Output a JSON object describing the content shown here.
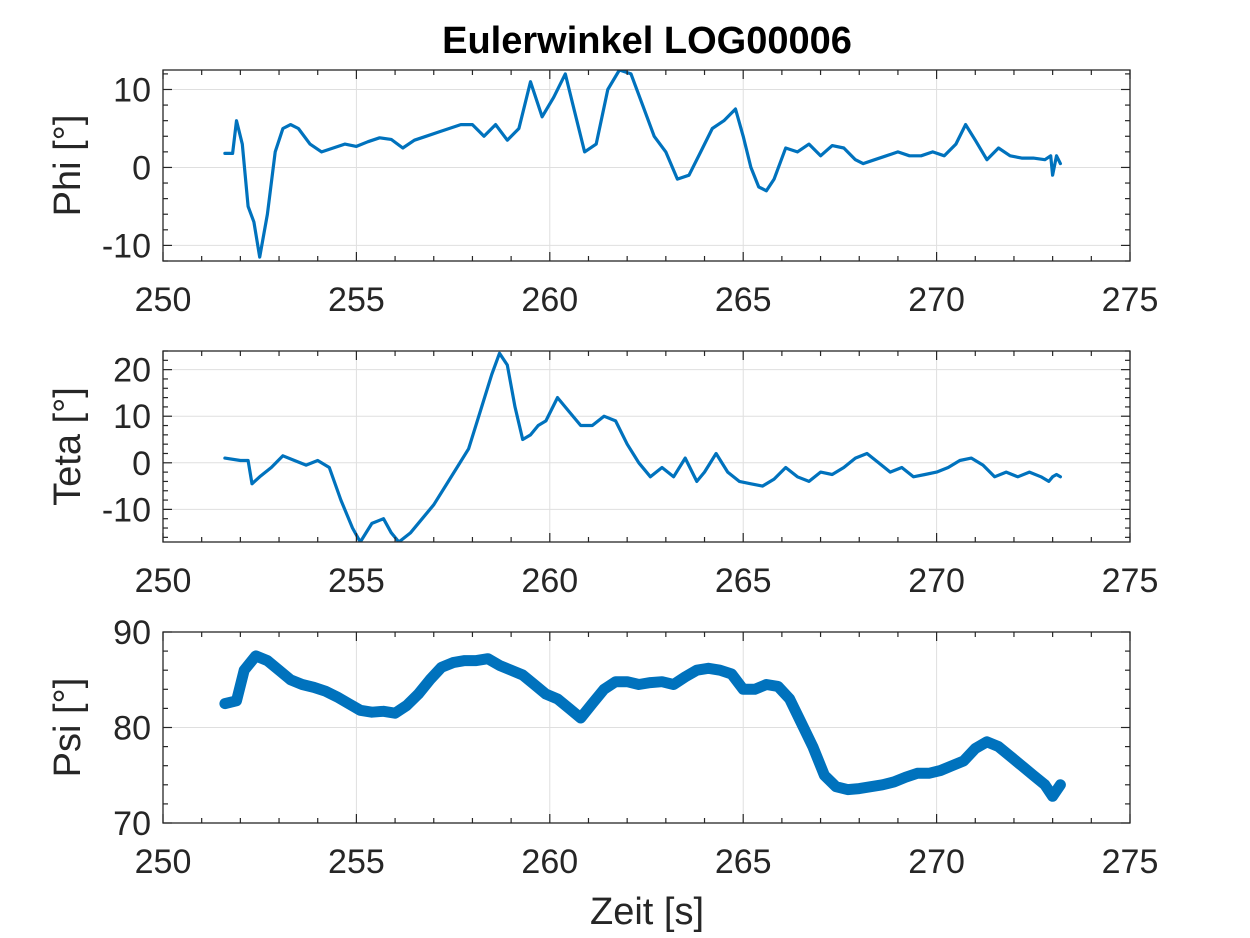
{
  "figure": {
    "title": "Eulerwinkel LOG00006",
    "xlabel": "Zeit [s]",
    "line_color": "#0072BD",
    "grid_color": "#dfdfdf",
    "axis_color": "#262626"
  },
  "chart_data": [
    {
      "type": "line",
      "ylabel": "Phi [°]",
      "xlim": [
        250,
        275
      ],
      "ylim": [
        -12,
        12.5
      ],
      "xticks": [
        250,
        255,
        260,
        265,
        270,
        275
      ],
      "yticks": [
        -10,
        0,
        10
      ],
      "xtick_labels": [
        "250",
        "255",
        "260",
        "265",
        "270",
        "275"
      ],
      "ytick_labels": [
        "-10",
        "0",
        "10"
      ],
      "grid": true,
      "series": [
        {
          "x": [
            251.6,
            251.8,
            251.9,
            252.05,
            252.2,
            252.35,
            252.5,
            252.7,
            252.9,
            253.1,
            253.3,
            253.5,
            253.8,
            254.1,
            254.4,
            254.7,
            255.0,
            255.3,
            255.6,
            255.9,
            256.2,
            256.5,
            256.8,
            257.1,
            257.4,
            257.7,
            258.0,
            258.3,
            258.6,
            258.9,
            259.2,
            259.5,
            259.8,
            260.1,
            260.4,
            260.6,
            260.9,
            261.2,
            261.5,
            261.8,
            262.1,
            262.4,
            262.7,
            263.0,
            263.3,
            263.6,
            263.9,
            264.2,
            264.5,
            264.8,
            265.0,
            265.2,
            265.4,
            265.6,
            265.8,
            266.1,
            266.4,
            266.7,
            267.0,
            267.3,
            267.6,
            267.9,
            268.1,
            268.4,
            268.7,
            269.0,
            269.3,
            269.6,
            269.9,
            270.2,
            270.5,
            270.75,
            271.0,
            271.3,
            271.6,
            271.9,
            272.2,
            272.5,
            272.8,
            272.95,
            273.0,
            273.1,
            273.2
          ],
          "y": [
            1.8,
            1.8,
            6,
            3,
            -5,
            -7,
            -11.5,
            -6,
            2,
            5,
            5.5,
            5,
            3,
            2,
            2.5,
            3,
            2.7,
            3.3,
            3.8,
            3.6,
            2.5,
            3.5,
            4,
            4.5,
            5,
            5.5,
            5.5,
            4,
            5.5,
            3.5,
            5,
            11,
            6.5,
            9,
            12,
            8,
            2,
            3,
            10,
            12.5,
            12,
            8,
            4,
            2,
            -1.5,
            -1,
            2,
            5,
            6,
            7.5,
            4,
            0,
            -2.5,
            -3,
            -1.5,
            2.5,
            2,
            3,
            1.5,
            2.8,
            2.5,
            1,
            0.5,
            1,
            1.5,
            2,
            1.5,
            1.5,
            2,
            1.5,
            3,
            5.5,
            3.5,
            1,
            2.5,
            1.5,
            1.2,
            1.2,
            1,
            1.5,
            -1,
            1.5,
            0.5
          ]
        }
      ]
    },
    {
      "type": "line",
      "ylabel": "Teta [°]",
      "xlim": [
        250,
        275
      ],
      "ylim": [
        -17,
        24
      ],
      "xticks": [
        250,
        255,
        260,
        265,
        270,
        275
      ],
      "yticks": [
        -10,
        0,
        10,
        20
      ],
      "xtick_labels": [
        "250",
        "255",
        "260",
        "265",
        "270",
        "275"
      ],
      "ytick_labels": [
        "-10",
        "0",
        "10",
        "20"
      ],
      "grid": true,
      "series": [
        {
          "x": [
            251.6,
            252.0,
            252.2,
            252.3,
            252.5,
            252.8,
            253.1,
            253.4,
            253.7,
            254.0,
            254.3,
            254.6,
            254.9,
            255.1,
            255.4,
            255.7,
            255.9,
            256.1,
            256.4,
            256.7,
            257.0,
            257.3,
            257.6,
            257.9,
            258.2,
            258.5,
            258.7,
            258.9,
            259.1,
            259.3,
            259.5,
            259.7,
            259.9,
            260.2,
            260.5,
            260.8,
            261.1,
            261.4,
            261.7,
            262.0,
            262.3,
            262.6,
            262.9,
            263.2,
            263.5,
            263.8,
            264.0,
            264.3,
            264.6,
            264.9,
            265.2,
            265.5,
            265.8,
            266.1,
            266.4,
            266.7,
            267.0,
            267.3,
            267.6,
            267.9,
            268.2,
            268.5,
            268.8,
            269.1,
            269.4,
            269.7,
            270.0,
            270.3,
            270.6,
            270.9,
            271.2,
            271.5,
            271.8,
            272.1,
            272.4,
            272.7,
            272.9,
            273.0,
            273.1,
            273.2
          ],
          "y": [
            1,
            0.5,
            0.5,
            -4.5,
            -3,
            -1,
            1.5,
            0.5,
            -0.5,
            0.5,
            -1,
            -8,
            -14,
            -17,
            -13,
            -12,
            -15,
            -17,
            -15,
            -12,
            -9,
            -5,
            -1,
            3,
            11,
            19,
            23.5,
            21,
            12,
            5,
            6,
            8,
            9,
            14,
            11,
            8,
            8,
            10,
            9,
            4,
            0,
            -3,
            -1,
            -3,
            1,
            -4,
            -2,
            2,
            -2,
            -4,
            -4.5,
            -5,
            -3.5,
            -1,
            -3,
            -4,
            -2,
            -2.5,
            -1,
            1,
            2,
            0,
            -2,
            -1,
            -3,
            -2.5,
            -2,
            -1,
            0.5,
            1,
            -0.5,
            -3,
            -2,
            -3,
            -2,
            -3,
            -4,
            -3,
            -2.5,
            -3
          ]
        }
      ]
    },
    {
      "type": "line",
      "ylabel": "Psi [°]",
      "xlim": [
        250,
        275
      ],
      "ylim": [
        70,
        90
      ],
      "xticks": [
        250,
        255,
        260,
        265,
        270,
        275
      ],
      "yticks": [
        70,
        80,
        90
      ],
      "xtick_labels": [
        "250",
        "255",
        "260",
        "265",
        "270",
        "275"
      ],
      "ytick_labels": [
        "70",
        "80",
        "90"
      ],
      "grid": true,
      "series": [
        {
          "x": [
            251.6,
            251.9,
            252.1,
            252.4,
            252.7,
            253.0,
            253.3,
            253.6,
            253.9,
            254.2,
            254.5,
            254.8,
            255.1,
            255.4,
            255.7,
            256.0,
            256.3,
            256.6,
            256.9,
            257.2,
            257.5,
            257.8,
            258.1,
            258.4,
            258.7,
            259.0,
            259.3,
            259.6,
            259.9,
            260.2,
            260.5,
            260.8,
            261.1,
            261.4,
            261.7,
            262.0,
            262.3,
            262.6,
            262.9,
            263.2,
            263.5,
            263.8,
            264.1,
            264.4,
            264.7,
            265.0,
            265.3,
            265.6,
            265.9,
            266.2,
            266.5,
            266.8,
            267.1,
            267.4,
            267.7,
            268.0,
            268.3,
            268.6,
            268.9,
            269.2,
            269.5,
            269.8,
            270.1,
            270.4,
            270.7,
            271.0,
            271.3,
            271.6,
            271.9,
            272.2,
            272.5,
            272.8,
            273.0,
            273.2
          ],
          "y": [
            82.5,
            82.8,
            86,
            87.5,
            87,
            86,
            85,
            84.5,
            84.2,
            83.8,
            83.2,
            82.5,
            81.8,
            81.6,
            81.7,
            81.5,
            82.3,
            83.5,
            85,
            86.3,
            86.8,
            87,
            87,
            87.2,
            86.5,
            86,
            85.5,
            84.5,
            83.5,
            83,
            82,
            81,
            82.5,
            84,
            84.8,
            84.8,
            84.5,
            84.7,
            84.8,
            84.5,
            85.3,
            86,
            86.2,
            86,
            85.6,
            84,
            84,
            84.5,
            84.3,
            83,
            80.5,
            78,
            75,
            73.8,
            73.5,
            73.6,
            73.8,
            74,
            74.3,
            74.8,
            75.2,
            75.2,
            75.5,
            76,
            76.5,
            77.8,
            78.5,
            78,
            77,
            76,
            75,
            74,
            72.8,
            74
          ]
        }
      ]
    }
  ]
}
